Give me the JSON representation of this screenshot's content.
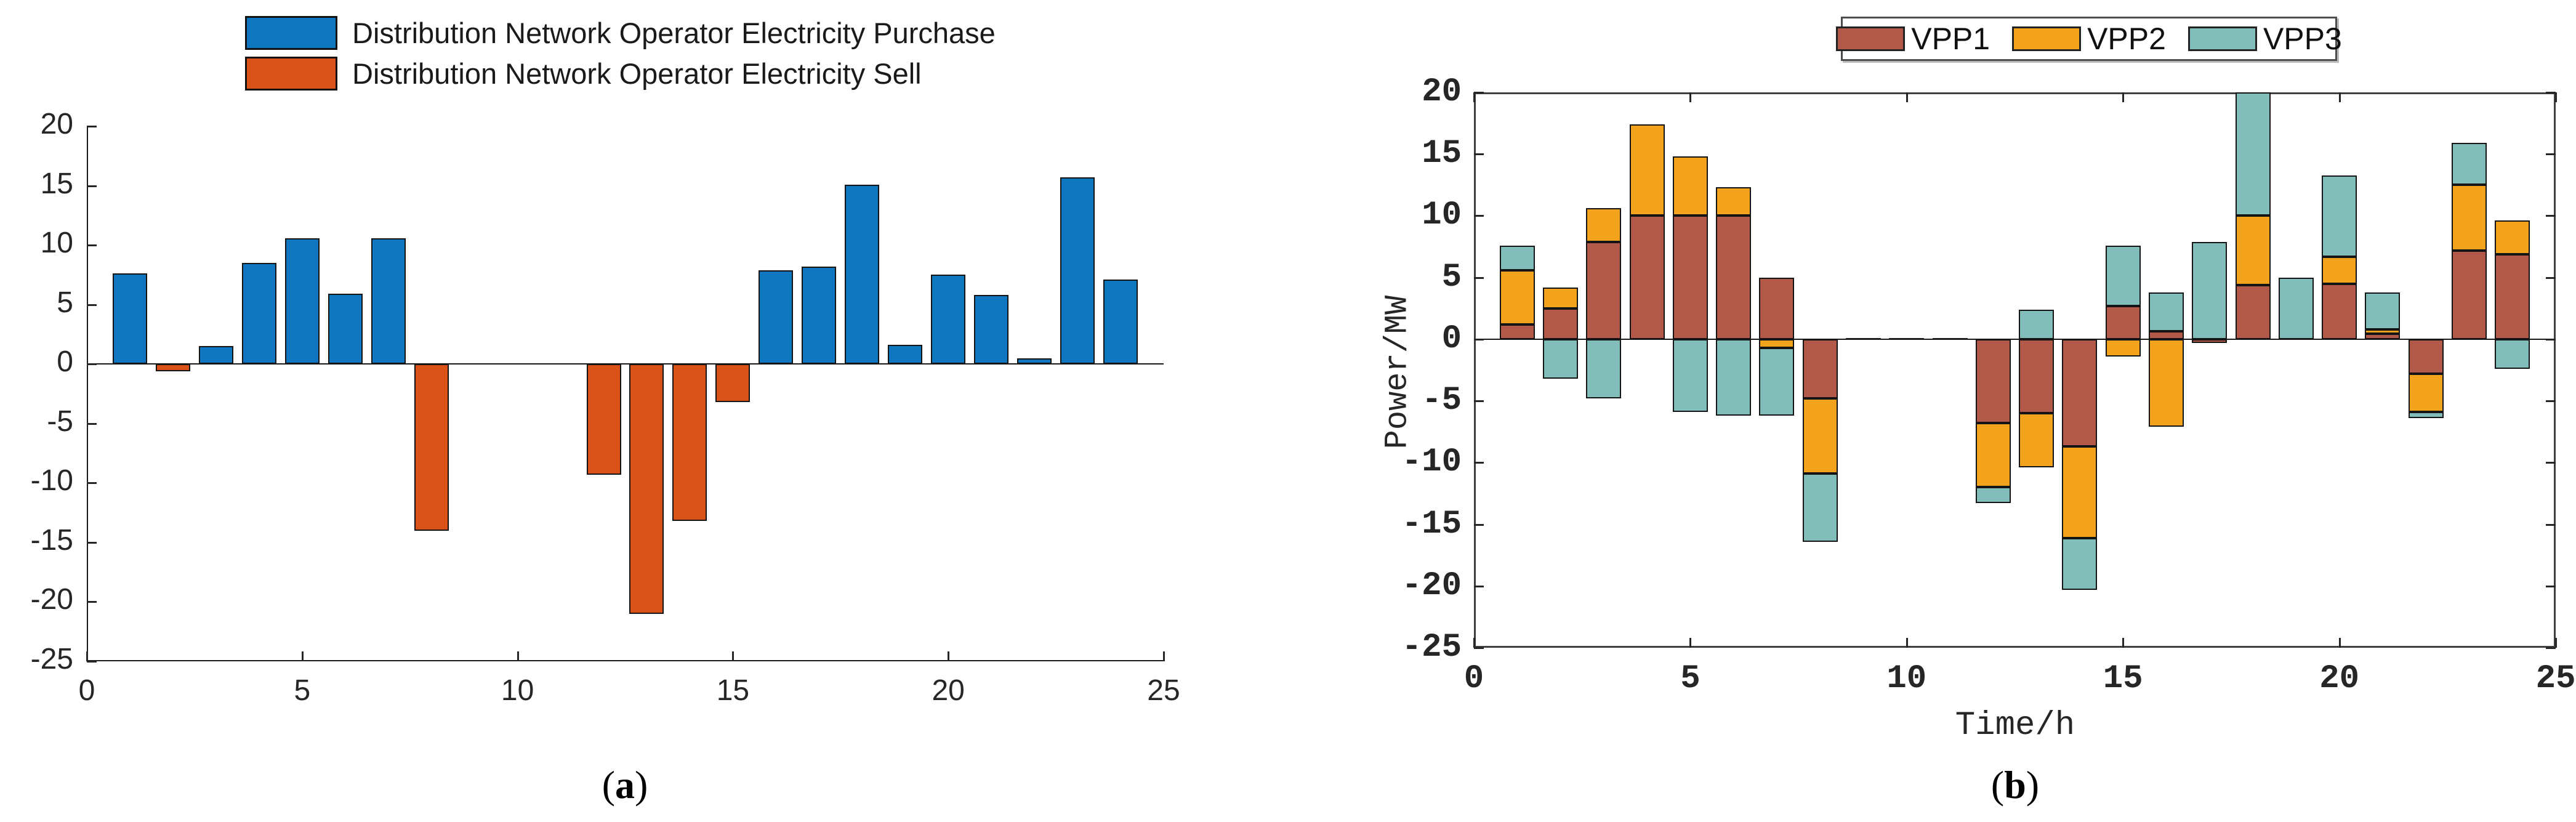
{
  "figure": {
    "caption_a": "(a)",
    "caption_b": "(b)"
  },
  "chart_data": [
    {
      "id": "a",
      "type": "bar",
      "caption": "(a)",
      "title": "",
      "xlabel": "",
      "ylabel": "",
      "xlim": [
        0,
        25
      ],
      "ylim": [
        -25,
        20
      ],
      "xticks": [
        0,
        5,
        10,
        15,
        20,
        25
      ],
      "yticks": [
        20,
        15,
        10,
        5,
        0,
        -5,
        -10,
        -15,
        -20,
        -25
      ],
      "grid": false,
      "legend_position": "top-left-outside",
      "categories": [
        1,
        2,
        3,
        4,
        5,
        6,
        7,
        8,
        9,
        10,
        11,
        12,
        13,
        14,
        15,
        16,
        17,
        18,
        19,
        20,
        21,
        22,
        23,
        24
      ],
      "series": [
        {
          "name": "Distribution Network Operator Electricity Purchase",
          "color": "#0f76c0",
          "values": [
            7.6,
            0,
            1.5,
            8.5,
            10.6,
            5.9,
            10.6,
            0,
            0,
            0,
            0,
            0,
            0,
            0,
            0,
            7.9,
            8.2,
            15.1,
            1.6,
            7.5,
            5.8,
            0.5,
            15.7,
            7.1
          ]
        },
        {
          "name": "Distribution Network Operator Electricity Sell",
          "color": "#d95319",
          "values": [
            0,
            -0.6,
            0,
            0,
            0,
            0,
            0,
            -14,
            0,
            0,
            0,
            -9.3,
            -21,
            -13.2,
            -3.2,
            0,
            0,
            0,
            0,
            0,
            0,
            0,
            0,
            0
          ]
        }
      ]
    },
    {
      "id": "b",
      "type": "stacked-bar",
      "caption": "(b)",
      "title": "",
      "xlabel": "Time/h",
      "ylabel": "Power/MW",
      "xlim": [
        0,
        25
      ],
      "ylim": [
        -25,
        20
      ],
      "xticks": [
        0,
        5,
        10,
        15,
        20,
        25
      ],
      "yticks": [
        20,
        15,
        10,
        5,
        0,
        -5,
        -10,
        -15,
        -20,
        -25
      ],
      "grid": false,
      "legend_position": "top-center-outside-boxed",
      "categories": [
        1,
        2,
        3,
        4,
        5,
        6,
        7,
        8,
        9,
        10,
        11,
        12,
        13,
        14,
        15,
        16,
        17,
        18,
        19,
        20,
        21,
        22,
        23,
        24
      ],
      "series": [
        {
          "name": "VPP1",
          "color": "#b3594a",
          "values": [
            1.2,
            2.5,
            7.9,
            10,
            10,
            10,
            5,
            -4.8,
            0,
            0,
            0,
            -6.8,
            -6,
            -8.7,
            2.7,
            0.65,
            -0.3,
            4.4,
            0,
            4.5,
            0.45,
            -2.8,
            7.2,
            6.9
          ]
        },
        {
          "name": "VPP2",
          "color": "#f3a31c",
          "values": [
            4.4,
            1.7,
            2.7,
            7.4,
            4.8,
            2.3,
            -0.7,
            -6.1,
            0,
            0,
            0,
            -5.2,
            -4.4,
            -7.4,
            -1.4,
            -7.1,
            0,
            5.6,
            0,
            2.2,
            0.35,
            -3.1,
            5.3,
            2.7
          ]
        },
        {
          "name": "VPP3",
          "color": "#82beb9",
          "values": [
            2.0,
            -3.2,
            -4.8,
            0,
            -5.9,
            -6.2,
            -5.5,
            -5.5,
            0,
            0,
            0,
            -1.3,
            2.4,
            -4.2,
            4.9,
            3.15,
            7.9,
            10,
            5,
            6.55,
            3,
            -0.5,
            3.4,
            -2.4
          ]
        }
      ]
    }
  ]
}
